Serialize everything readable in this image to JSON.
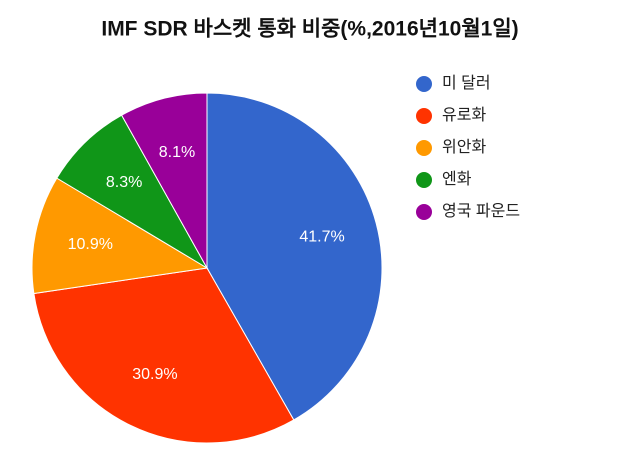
{
  "chart_data": {
    "type": "pie",
    "title": "IMF SDR 바스켓 통화 비중(%,2016년10월1일)",
    "categories": [
      "미 달러",
      "유로화",
      "위안화",
      "엔화",
      "영국 파운드"
    ],
    "values": [
      41.7,
      30.9,
      10.9,
      8.3,
      8.1
    ],
    "value_labels": [
      "41.7%",
      "30.9%",
      "10.9%",
      "8.3%",
      "8.1%"
    ],
    "colors": [
      "#3366cc",
      "#ff3300",
      "#ff9900",
      "#109618",
      "#990099"
    ],
    "legend": "right"
  }
}
